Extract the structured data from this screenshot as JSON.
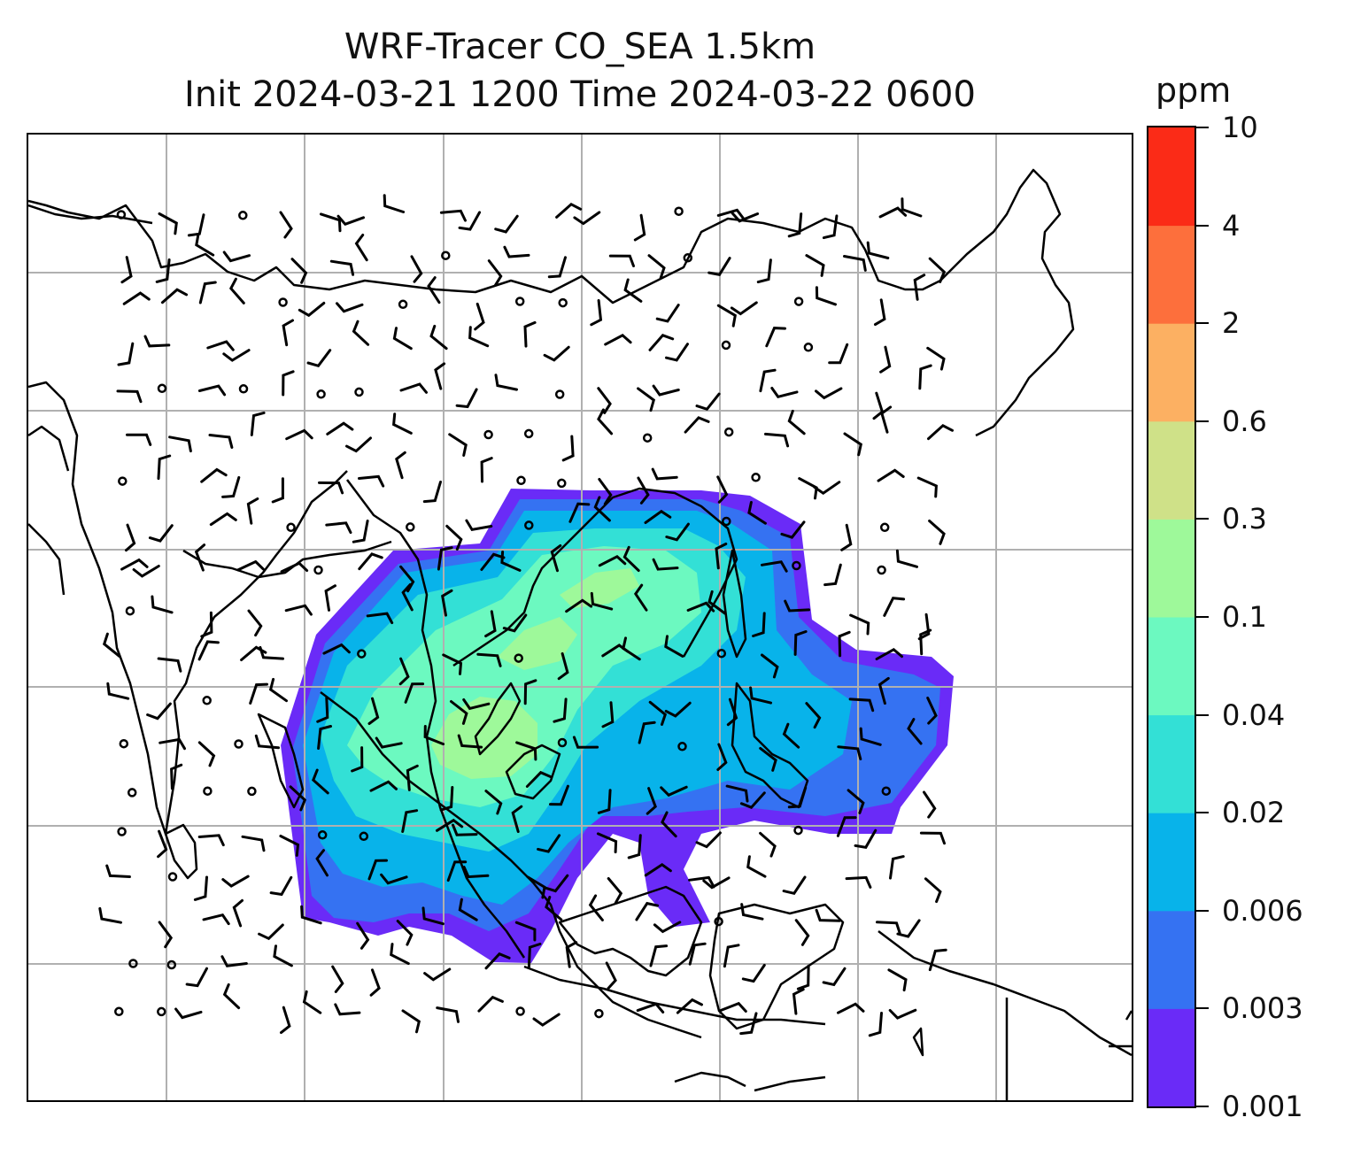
{
  "title_line1": "WRF-Tracer CO_SEA 1.5km",
  "title_line2": "Init 2024-03-21 1200 Time 2024-03-22 0600",
  "colorbar": {
    "unit": "ppm",
    "levels": [
      "0.001",
      "0.003",
      "0.006",
      "0.02",
      "0.04",
      "0.1",
      "0.3",
      "0.6",
      "2",
      "4",
      "10"
    ],
    "colors": [
      "#6a2bf7",
      "#3572f2",
      "#08b3ea",
      "#33e0d6",
      "#6cf9c0",
      "#9ef99a",
      "#cfe188",
      "#fcb062",
      "#fd6f3c",
      "#fb2b17"
    ]
  },
  "map": {
    "gridlines": "on",
    "grid_color": "#b0b0b0",
    "coastline_color": "#000000",
    "wind_barbs": "on"
  }
}
